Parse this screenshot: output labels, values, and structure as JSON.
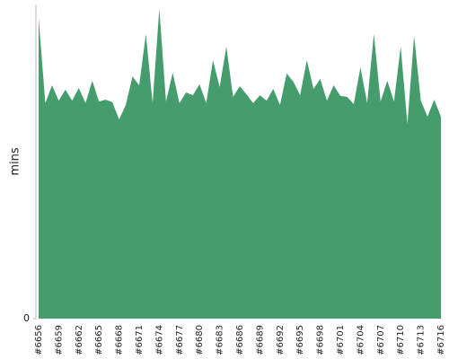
{
  "chart_data": {
    "type": "area",
    "y_label": "mins",
    "color": "#459c6c",
    "categories": [
      "#6656",
      null,
      null,
      "#6659",
      null,
      null,
      "#6662",
      null,
      null,
      "#6665",
      null,
      null,
      "#6668",
      null,
      null,
      "#6671",
      null,
      null,
      "#6674",
      null,
      null,
      "#6677",
      null,
      null,
      "#6680",
      null,
      null,
      "#6683",
      null,
      null,
      "#6686",
      null,
      null,
      "#6689",
      null,
      null,
      "#6692",
      null,
      null,
      "#6695",
      null,
      null,
      "#6698",
      null,
      null,
      "#6701",
      null,
      null,
      "#6704",
      null,
      null,
      "#6707",
      null,
      null,
      "#6710",
      null,
      null,
      "#6713",
      null,
      null,
      "#6716"
    ],
    "values": [
      95.7,
      68.6,
      74.3,
      69.4,
      72.9,
      69.4,
      73.4,
      68.6,
      75.7,
      69.1,
      69.7,
      68.9,
      63.4,
      68,
      77.1,
      74.3,
      90.6,
      68.6,
      98.6,
      69.1,
      78.3,
      68.6,
      72,
      71.1,
      74.6,
      68.6,
      82.3,
      73.7,
      86.6,
      70.6,
      74,
      71.4,
      68.6,
      71.1,
      69.4,
      73.1,
      68,
      78,
      75.4,
      71.1,
      82.3,
      73.1,
      76.3,
      69.4,
      74.3,
      70.9,
      70.6,
      68.3,
      80,
      68.6,
      90.6,
      69.1,
      75.7,
      69.1,
      86.6,
      62,
      90,
      69.4,
      64.3,
      69.7,
      64.3
    ],
    "ylim": [
      0,
      100
    ],
    "yticks": [
      0
    ]
  }
}
